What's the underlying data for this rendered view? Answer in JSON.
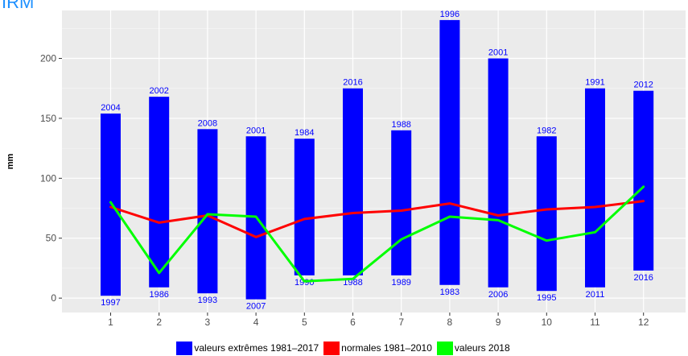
{
  "chart_data": {
    "type": "bar",
    "title": "IRM",
    "ylabel": "mm",
    "xlabel": "",
    "categories": [
      "1",
      "2",
      "3",
      "4",
      "5",
      "6",
      "7",
      "8",
      "9",
      "10",
      "11",
      "12"
    ],
    "ylim": [
      -12,
      240
    ],
    "yticks": [
      0,
      50,
      100,
      150,
      200
    ],
    "grid": true,
    "legend_position": "bottom",
    "extremes": {
      "name": "valeurs extrêmes 1981–2017",
      "color": "#0000ff",
      "max": [
        154,
        168,
        141,
        135,
        133,
        175,
        140,
        232,
        200,
        135,
        175,
        173
      ],
      "min": [
        2,
        9,
        4,
        -1,
        19,
        19,
        19,
        11,
        9,
        6,
        9,
        23
      ],
      "max_year": [
        "2004",
        "2002",
        "2008",
        "2001",
        "1984",
        "2016",
        "1988",
        "1996",
        "2001",
        "1982",
        "1991",
        "2012"
      ],
      "min_year": [
        "1997",
        "1986",
        "1993",
        "2007",
        "1990",
        "1988",
        "1989",
        "1983",
        "2006",
        "1995",
        "2011",
        "2016"
      ]
    },
    "series": [
      {
        "name": "normales 1981–2010",
        "color": "#ff0000",
        "values": [
          76,
          63,
          69,
          51,
          66,
          71,
          73,
          79,
          69,
          74,
          76,
          81
        ]
      },
      {
        "name": "valeurs 2018",
        "color": "#00ff00",
        "values": [
          80,
          21,
          70,
          68,
          14,
          16,
          49,
          68,
          65,
          48,
          55,
          93
        ]
      }
    ]
  }
}
